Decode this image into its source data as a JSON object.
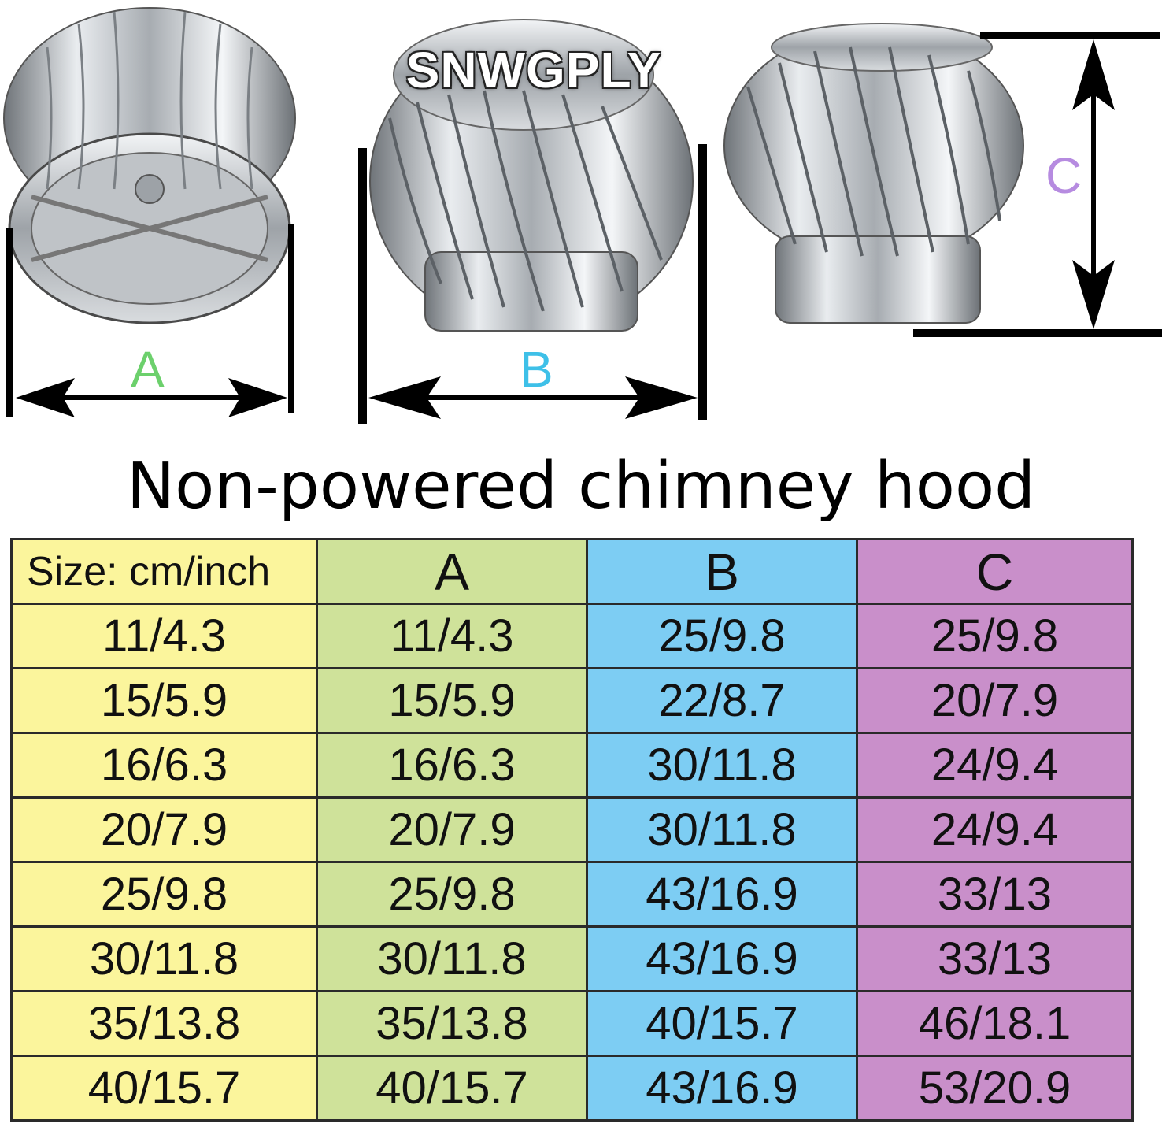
{
  "brand": "SNWGPLY",
  "dimension_labels": {
    "a": "A",
    "b": "B",
    "c": "C"
  },
  "title": "Non-powered chimney hood",
  "colors": {
    "size_column": "#fbf59c",
    "a_column": "#cfe29a",
    "b_column": "#7dcdf3",
    "c_column": "#c98fca",
    "label_a": "#6cd06c",
    "label_b": "#3ec0e8",
    "label_c": "#b68be0"
  },
  "table": {
    "headers": [
      "Size: cm/inch",
      "A",
      "B",
      "C"
    ],
    "rows": [
      [
        "11/4.3",
        "11/4.3",
        "25/9.8",
        "25/9.8"
      ],
      [
        "15/5.9",
        "15/5.9",
        "22/8.7",
        "20/7.9"
      ],
      [
        "16/6.3",
        "16/6.3",
        "30/11.8",
        "24/9.4"
      ],
      [
        "20/7.9",
        "20/7.9",
        "30/11.8",
        "24/9.4"
      ],
      [
        "25/9.8",
        "25/9.8",
        "43/16.9",
        "33/13"
      ],
      [
        "30/11.8",
        "30/11.8",
        "43/16.9",
        "33/13"
      ],
      [
        "35/13.8",
        "35/13.8",
        "40/15.7",
        "46/18.1"
      ],
      [
        "40/15.7",
        "40/15.7",
        "43/16.9",
        "53/20.9"
      ]
    ]
  }
}
